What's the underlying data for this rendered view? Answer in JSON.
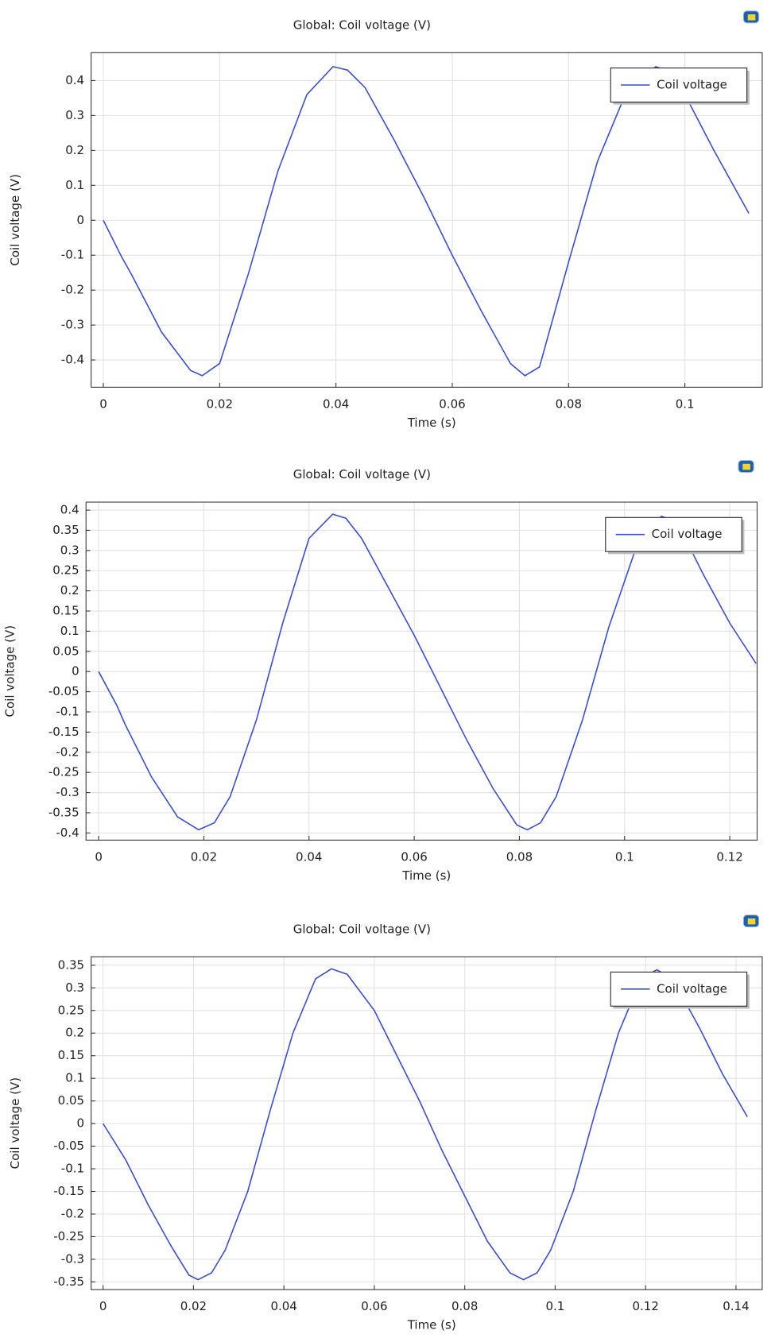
{
  "chart_data": [
    {
      "type": "line",
      "title": "Global: Coil voltage (V)",
      "x_label": "Time (s)",
      "y_label": "Coil voltage (V)",
      "x": [
        0,
        0.003,
        0.005,
        0.01,
        0.015,
        0.017,
        0.02,
        0.025,
        0.03,
        0.035,
        0.0395,
        0.042,
        0.045,
        0.05,
        0.055,
        0.06,
        0.065,
        0.07,
        0.0725,
        0.075,
        0.08,
        0.085,
        0.09,
        0.095,
        0.098,
        0.1,
        0.105,
        0.111
      ],
      "series": [
        {
          "name": "Coil voltage",
          "color": "#3a4fd6",
          "values": [
            0,
            -0.1,
            -0.16,
            -0.32,
            -0.43,
            -0.445,
            -0.41,
            -0.15,
            0.14,
            0.36,
            0.44,
            0.43,
            0.38,
            0.23,
            0.07,
            -0.1,
            -0.26,
            -0.41,
            -0.445,
            -0.42,
            -0.12,
            0.17,
            0.37,
            0.44,
            0.42,
            0.36,
            0.2,
            0.02
          ]
        }
      ],
      "xlim": [
        -0.0021,
        0.1133
      ],
      "ylim": [
        -0.478,
        0.48
      ],
      "xticks": [
        0,
        0.02,
        0.04,
        0.06,
        0.08,
        0.1
      ],
      "yticks": [
        -0.4,
        -0.3,
        -0.2,
        -0.1,
        0,
        0.1,
        0.2,
        0.3,
        0.4
      ],
      "grid": true,
      "legend": "upper right"
    },
    {
      "type": "line",
      "title": "Global: Coil voltage (V)",
      "x_label": "Time (s)",
      "y_label": "Coil voltage (V)",
      "x": [
        0,
        0.0035,
        0.005,
        0.01,
        0.015,
        0.019,
        0.022,
        0.025,
        0.03,
        0.035,
        0.04,
        0.0445,
        0.047,
        0.05,
        0.055,
        0.06,
        0.065,
        0.07,
        0.075,
        0.0795,
        0.0815,
        0.084,
        0.087,
        0.092,
        0.097,
        0.102,
        0.107,
        0.11,
        0.115,
        0.12,
        0.125
      ],
      "series": [
        {
          "name": "Coil voltage",
          "color": "#3a4fd6",
          "values": [
            0,
            -0.085,
            -0.13,
            -0.26,
            -0.36,
            -0.392,
            -0.375,
            -0.31,
            -0.12,
            0.12,
            0.33,
            0.39,
            0.38,
            0.33,
            0.21,
            0.09,
            -0.04,
            -0.17,
            -0.29,
            -0.38,
            -0.392,
            -0.375,
            -0.31,
            -0.12,
            0.11,
            0.3,
            0.385,
            0.37,
            0.24,
            0.12,
            0.02
          ]
        }
      ],
      "xlim": [
        -0.0024,
        0.1252
      ],
      "ylim": [
        -0.4177,
        0.4198
      ],
      "xticks": [
        0,
        0.02,
        0.04,
        0.06,
        0.08,
        0.1,
        0.12
      ],
      "yticks": [
        -0.4,
        -0.35,
        -0.3,
        -0.25,
        -0.2,
        -0.15,
        -0.1,
        -0.05,
        0,
        0.05,
        0.1,
        0.15,
        0.2,
        0.25,
        0.3,
        0.35,
        0.4
      ],
      "grid": true,
      "legend": "upper right"
    },
    {
      "type": "line",
      "title": "Global: Coil voltage (V)",
      "x_label": "Time (s)",
      "y_label": "Coil voltage (V)",
      "x": [
        0,
        0.005,
        0.01,
        0.015,
        0.019,
        0.021,
        0.024,
        0.027,
        0.032,
        0.037,
        0.042,
        0.047,
        0.0505,
        0.054,
        0.06,
        0.065,
        0.07,
        0.075,
        0.08,
        0.085,
        0.09,
        0.093,
        0.096,
        0.099,
        0.104,
        0.109,
        0.114,
        0.119,
        0.1225,
        0.126,
        0.132,
        0.137,
        0.1425
      ],
      "series": [
        {
          "name": "Coil voltage",
          "color": "#3a4fd6",
          "values": [
            0,
            -0.08,
            -0.18,
            -0.27,
            -0.335,
            -0.345,
            -0.33,
            -0.28,
            -0.15,
            0.03,
            0.2,
            0.32,
            0.342,
            0.33,
            0.25,
            0.15,
            0.05,
            -0.06,
            -0.16,
            -0.26,
            -0.33,
            -0.345,
            -0.33,
            -0.28,
            -0.15,
            0.03,
            0.2,
            0.32,
            0.34,
            0.32,
            0.21,
            0.11,
            0.015
          ]
        }
      ],
      "xlim": [
        -0.00264,
        0.1458
      ],
      "ylim": [
        -0.367,
        0.3688
      ],
      "xticks": [
        0,
        0.02,
        0.04,
        0.06,
        0.08,
        0.1,
        0.12,
        0.14
      ],
      "yticks": [
        -0.35,
        -0.3,
        -0.25,
        -0.2,
        -0.15,
        -0.1,
        -0.05,
        0,
        0.05,
        0.1,
        0.15,
        0.2,
        0.25,
        0.3,
        0.35
      ],
      "grid": true,
      "legend": "upper right"
    }
  ]
}
